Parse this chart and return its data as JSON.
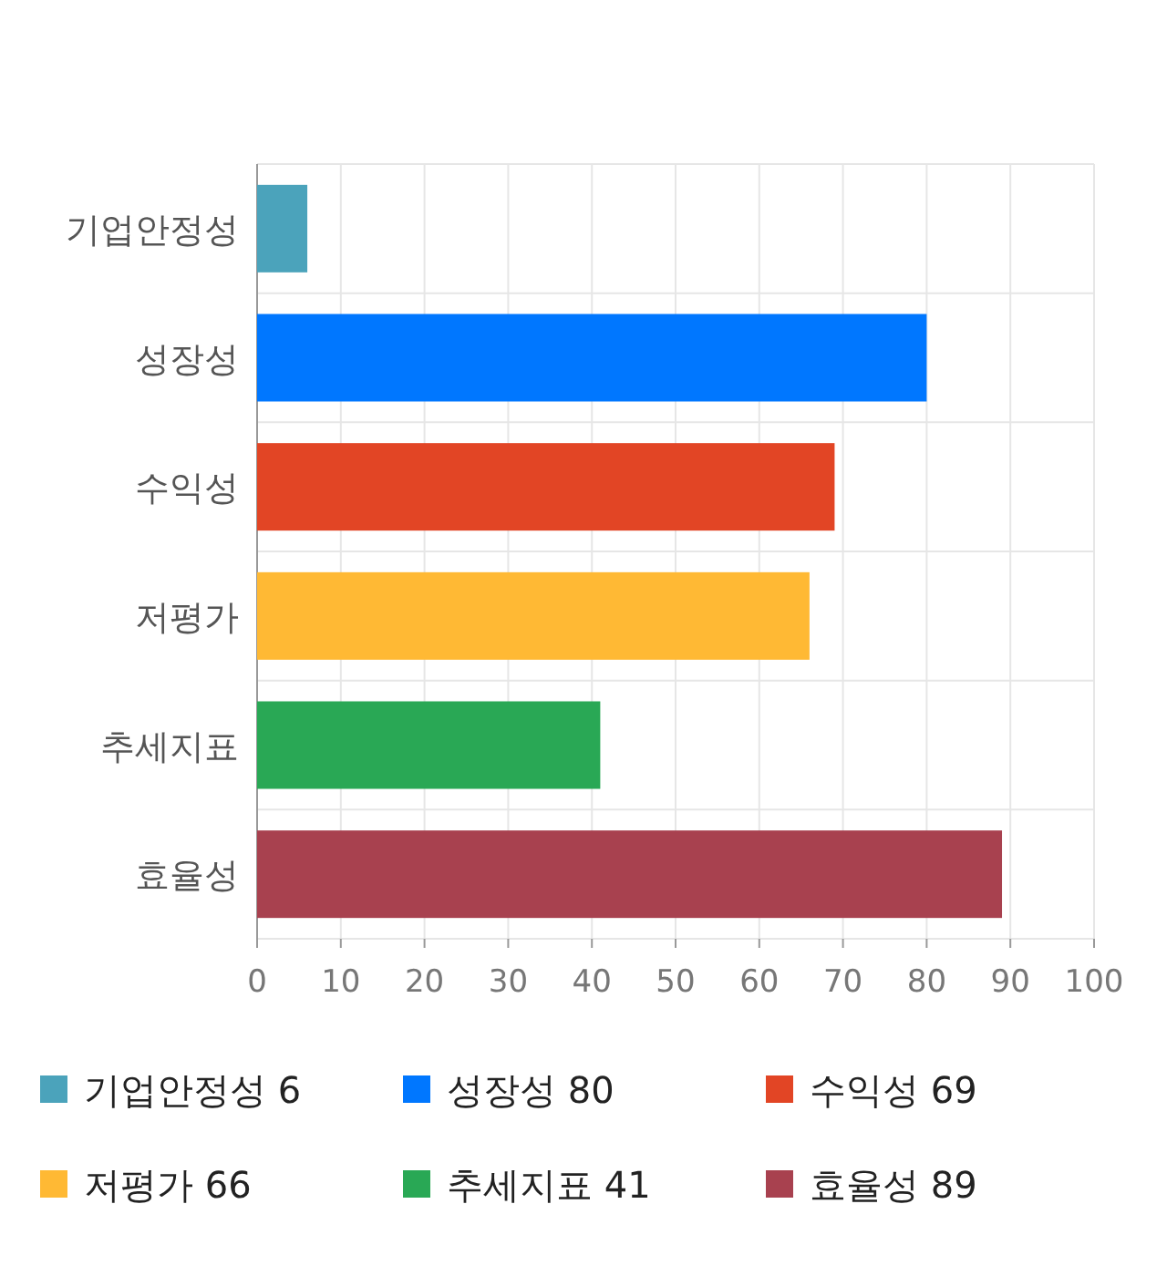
{
  "chart_data": {
    "type": "bar",
    "orientation": "horizontal",
    "stacked": true,
    "categories": [
      "기업안정성",
      "성장성",
      "수익성",
      "저평가",
      "추세지표",
      "효율성"
    ],
    "series": [
      {
        "name": "기업안정성 6",
        "color": "#4ba3bb",
        "values": [
          6,
          null,
          null,
          null,
          null,
          null
        ]
      },
      {
        "name": "성장성 80",
        "color": "#0077ff",
        "values": [
          null,
          80,
          null,
          null,
          null,
          null
        ]
      },
      {
        "name": "수익성 69",
        "color": "#e24525",
        "values": [
          null,
          null,
          69,
          null,
          null,
          null
        ]
      },
      {
        "name": "저평가 66",
        "color": "#ffb934",
        "values": [
          null,
          null,
          null,
          66,
          null,
          null
        ]
      },
      {
        "name": "추세지표 41",
        "color": "#29a855",
        "values": [
          null,
          null,
          null,
          null,
          41,
          null
        ]
      },
      {
        "name": "효율성 89",
        "color": "#a8414f",
        "values": [
          null,
          null,
          null,
          null,
          null,
          89
        ]
      }
    ],
    "xlim": [
      0,
      100
    ],
    "xticks": [
      0,
      10,
      20,
      30,
      40,
      50,
      60,
      70,
      80,
      90,
      100
    ],
    "grid": true,
    "legend": "bottom"
  }
}
